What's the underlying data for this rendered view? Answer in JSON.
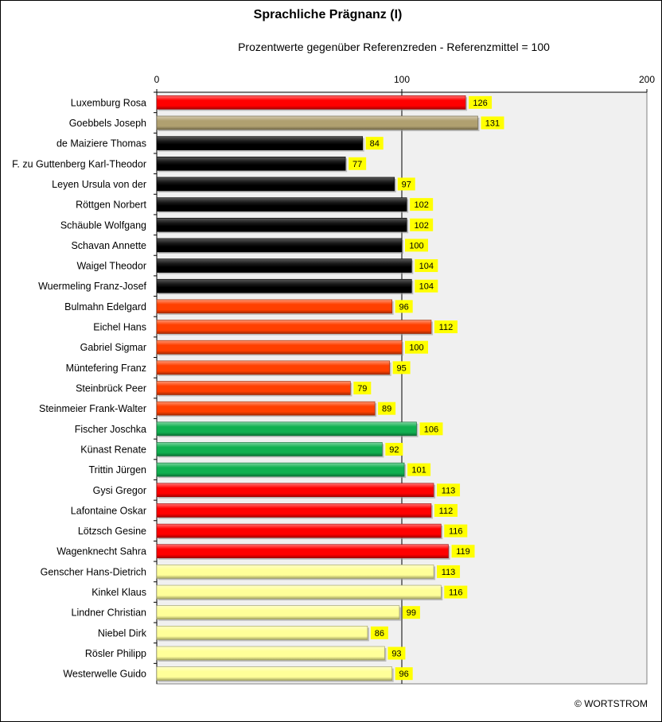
{
  "chart_data": {
    "type": "bar",
    "orientation": "horizontal",
    "title": "Sprachliche Prägnanz (I)",
    "subtitle": "Prozentwerte  gegenüber Referenzreden - Referenzmittel = 100",
    "xlim": [
      0,
      200
    ],
    "xticks": [
      "0",
      "100",
      "200"
    ],
    "reference_line": 100,
    "value_label_color": "#ffff00",
    "categories": [
      "Luxemburg Rosa",
      "Goebbels Joseph",
      "de Maiziere Thomas",
      "F. zu Guttenberg Karl-Theodor",
      "Leyen Ursula von der",
      "Röttgen Norbert",
      "Schäuble Wolfgang",
      "Schavan Annette",
      "Waigel Theodor",
      "Wuermeling Franz-Josef",
      "Bulmahn Edelgard",
      "Eichel Hans",
      "Gabriel Sigmar",
      "Müntefering Franz",
      "Steinbrück Peer",
      "Steinmeier Frank-Walter",
      "Fischer Joschka",
      "Künast Renate",
      "Trittin Jürgen",
      "Gysi Gregor",
      "Lafontaine Oskar",
      "Lötzsch Gesine",
      "Wagenknecht Sahra",
      "Genscher Hans-Dietrich",
      "Kinkel Klaus",
      "Lindner Christian",
      "Niebel Dirk",
      "Rösler Philipp",
      "Westerwelle Guido"
    ],
    "values": [
      126,
      131,
      84,
      77,
      97,
      102,
      102,
      100,
      104,
      104,
      96,
      112,
      100,
      95,
      79,
      89,
      106,
      92,
      101,
      113,
      112,
      116,
      119,
      113,
      116,
      99,
      86,
      93,
      96
    ],
    "bar_colors": [
      "#ff0000",
      "#b0a070",
      "#000000",
      "#000000",
      "#000000",
      "#000000",
      "#000000",
      "#000000",
      "#000000",
      "#000000",
      "#ff4000",
      "#ff4000",
      "#ff4000",
      "#ff4000",
      "#ff4000",
      "#ff4000",
      "#10b050",
      "#10b050",
      "#10b050",
      "#ff0000",
      "#ff0000",
      "#ff0000",
      "#ff0000",
      "#ffff99",
      "#ffff99",
      "#ffff99",
      "#ffff99",
      "#ffff99",
      "#ffff99"
    ],
    "plot_background": "#f0f0f0",
    "grid": false
  },
  "copyright": "© WORTSTROM"
}
